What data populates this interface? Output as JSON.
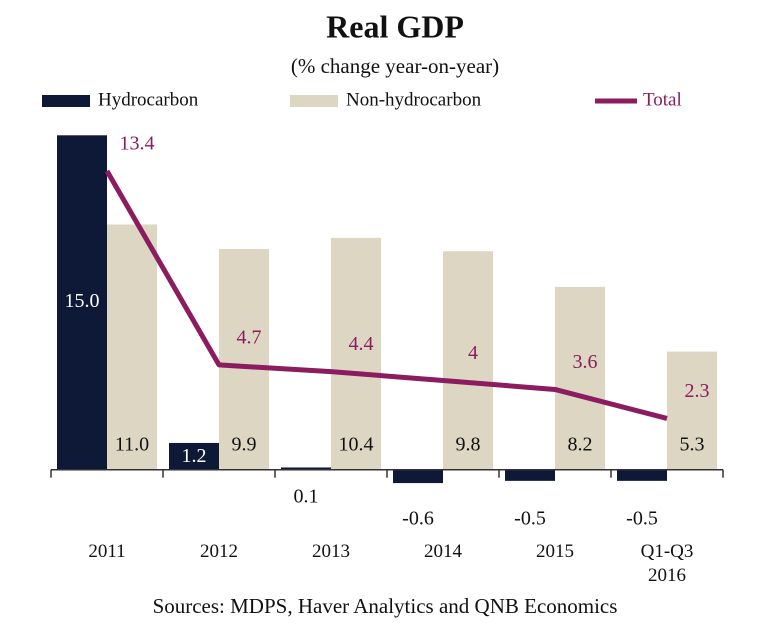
{
  "chart_data": {
    "type": "bar_line",
    "title": "Real GDP",
    "subtitle": "(% change year-on-year)",
    "source": "Sources: MDPS, Haver Analytics and QNB Economics",
    "categories": [
      "2011",
      "2012",
      "2013",
      "2014",
      "2015",
      "Q1-Q3 2016"
    ],
    "series": [
      {
        "name": "Hydrocarbon",
        "type": "bar",
        "color": "#0e1938",
        "values": [
          15.0,
          1.2,
          0.1,
          -0.6,
          -0.5,
          -0.5
        ],
        "value_labels": [
          "15.0",
          "1.2",
          "0.1",
          "-0.6",
          "-0.5",
          "-0.5"
        ]
      },
      {
        "name": "Non-hydrocarbon",
        "type": "bar",
        "color": "#ddd6c3",
        "values": [
          11.0,
          9.9,
          10.4,
          9.8,
          8.2,
          5.3
        ],
        "value_labels": [
          "11.0",
          "9.9",
          "10.4",
          "9.8",
          "8.2",
          "5.3"
        ]
      },
      {
        "name": "Total",
        "type": "line",
        "color": "#8a1c5f",
        "values": [
          13.4,
          4.7,
          4.4,
          4.0,
          3.6,
          2.3
        ]
      }
    ],
    "ylim": [
      -1,
      16
    ]
  }
}
